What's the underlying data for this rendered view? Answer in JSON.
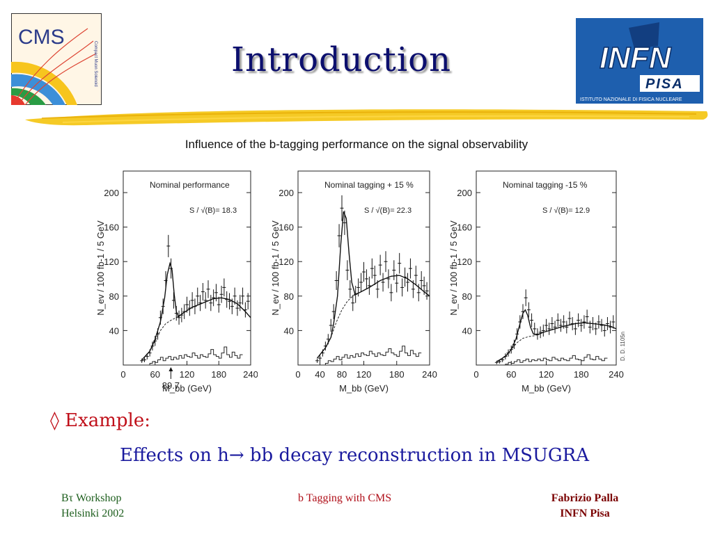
{
  "slide": {
    "title": "Introduction",
    "figure_title": "Influence of the b-tagging performance on the signal observability",
    "example_label": "◊ Example:",
    "example_text": "Effects on h→ bb decay reconstruction in MSUGRA"
  },
  "logos": {
    "cms": {
      "text": "CMS",
      "subtext": "Compact Muon Solenoid"
    },
    "infn": {
      "text": "INFN",
      "subtext": "PISA",
      "caption": "ISTITUTO NAZIONALE DI FISICA NUCLEARE"
    }
  },
  "footer": {
    "left_line1": "Bτ Workshop",
    "left_line2": "Helsinki 2002",
    "center": "b Tagging with CMS",
    "right_line1": "Fabrizio Palla",
    "right_line2": "INFN Pisa"
  },
  "colors": {
    "title": "#0c0f6e",
    "example": "#c0101a",
    "body_text": "#1a1a9e",
    "swoosh": "#f2c200"
  },
  "chart_data": [
    {
      "type": "scatter",
      "title": "Nominal performance",
      "annotation": "S / √(B)= 18.3",
      "peak_label": "89.7",
      "ylabel": "N_ev / 100 fb-1 / 5 GeV",
      "xlabel": "M_bb (GeV)",
      "xlim": [
        0,
        240
      ],
      "ylim": [
        0,
        225
      ],
      "xticks": [
        0,
        60,
        120,
        180,
        240
      ],
      "yticks": [
        40,
        80,
        120,
        160,
        200
      ],
      "x": [
        35,
        40,
        45,
        50,
        55,
        60,
        65,
        70,
        75,
        80,
        85,
        90,
        95,
        100,
        105,
        110,
        115,
        120,
        125,
        130,
        135,
        140,
        145,
        150,
        155,
        160,
        165,
        170,
        175,
        180,
        185,
        190,
        195,
        200,
        205,
        210,
        215,
        220,
        225,
        230,
        235
      ],
      "y": [
        5,
        6,
        10,
        14,
        22,
        28,
        36,
        55,
        68,
        98,
        138,
        112,
        75,
        60,
        55,
        58,
        62,
        70,
        66,
        75,
        68,
        80,
        72,
        85,
        75,
        88,
        72,
        78,
        84,
        70,
        82,
        90,
        76,
        74,
        68,
        80,
        66,
        72,
        80,
        64,
        74
      ],
      "signal_fit": [
        [
          35,
          6
        ],
        [
          50,
          16
        ],
        [
          60,
          30
        ],
        [
          70,
          50
        ],
        [
          78,
          78
        ],
        [
          83,
          105
        ],
        [
          88,
          118
        ],
        [
          92,
          110
        ],
        [
          96,
          82
        ],
        [
          100,
          62
        ],
        [
          104,
          56
        ],
        [
          112,
          60
        ],
        [
          130,
          67
        ],
        [
          150,
          72
        ],
        [
          170,
          77
        ],
        [
          185,
          78
        ],
        [
          200,
          76
        ],
        [
          215,
          71
        ],
        [
          230,
          62
        ],
        [
          240,
          55
        ]
      ],
      "background_fit": [
        [
          35,
          6
        ],
        [
          50,
          16
        ],
        [
          60,
          28
        ],
        [
          70,
          40
        ],
        [
          80,
          48
        ],
        [
          90,
          52
        ],
        [
          100,
          55
        ],
        [
          112,
          60
        ],
        [
          130,
          67
        ],
        [
          150,
          72
        ],
        [
          170,
          77
        ],
        [
          185,
          78
        ],
        [
          200,
          76
        ],
        [
          215,
          71
        ],
        [
          230,
          62
        ],
        [
          240,
          55
        ]
      ],
      "histogram": [
        2,
        4,
        3,
        6,
        9,
        5,
        8,
        10,
        6,
        9,
        7,
        11,
        8,
        12,
        10,
        9,
        14,
        11,
        8,
        12,
        10,
        9,
        13,
        18,
        12,
        10,
        8,
        14,
        21,
        12,
        9,
        15,
        11,
        8,
        12
      ]
    },
    {
      "type": "scatter",
      "title": "Nominal tagging + 15 %",
      "annotation": "S / √(B)= 22.3",
      "ylabel": "N_ev / 100 fb-1 / 5 GeV",
      "xlabel": "M_bb (GeV)",
      "xlim": [
        0,
        240
      ],
      "ylim": [
        0,
        225
      ],
      "xticks": [
        0,
        40,
        80,
        120,
        180,
        240
      ],
      "yticks": [
        40,
        80,
        120,
        160,
        200
      ],
      "x": [
        35,
        40,
        45,
        50,
        55,
        60,
        65,
        70,
        75,
        80,
        85,
        90,
        95,
        100,
        105,
        110,
        115,
        120,
        125,
        130,
        135,
        140,
        145,
        150,
        155,
        160,
        165,
        170,
        175,
        180,
        185,
        190,
        195,
        200,
        205,
        210,
        215,
        220,
        225,
        230,
        235
      ],
      "y": [
        5,
        8,
        14,
        22,
        30,
        46,
        62,
        98,
        150,
        182,
        165,
        110,
        88,
        72,
        82,
        90,
        96,
        108,
        100,
        92,
        112,
        104,
        88,
        116,
        96,
        120,
        100,
        84,
        110,
        95,
        118,
        90,
        102,
        96,
        112,
        88,
        104,
        84,
        98,
        92,
        86
      ],
      "signal_fit": [
        [
          35,
          8
        ],
        [
          50,
          20
        ],
        [
          60,
          32
        ],
        [
          65,
          48
        ],
        [
          72,
          80
        ],
        [
          78,
          140
        ],
        [
          83,
          178
        ],
        [
          88,
          170
        ],
        [
          93,
          130
        ],
        [
          98,
          96
        ],
        [
          104,
          82
        ],
        [
          112,
          84
        ],
        [
          130,
          90
        ],
        [
          150,
          98
        ],
        [
          170,
          103
        ],
        [
          185,
          104
        ],
        [
          200,
          100
        ],
        [
          215,
          93
        ],
        [
          230,
          85
        ],
        [
          240,
          80
        ]
      ],
      "background_fit": [
        [
          35,
          8
        ],
        [
          50,
          20
        ],
        [
          60,
          32
        ],
        [
          70,
          50
        ],
        [
          80,
          64
        ],
        [
          90,
          74
        ],
        [
          100,
          80
        ],
        [
          112,
          84
        ],
        [
          130,
          90
        ],
        [
          150,
          98
        ],
        [
          170,
          103
        ],
        [
          185,
          104
        ],
        [
          200,
          100
        ],
        [
          215,
          93
        ],
        [
          230,
          85
        ],
        [
          240,
          80
        ]
      ],
      "histogram": [
        2,
        5,
        4,
        7,
        10,
        6,
        9,
        12,
        8,
        11,
        9,
        13,
        10,
        14,
        12,
        11,
        16,
        13,
        10,
        14,
        12,
        11,
        15,
        19,
        14,
        12,
        10,
        16,
        22,
        14,
        11,
        17,
        13,
        10,
        14
      ]
    },
    {
      "type": "scatter",
      "title": "Nominal tagging -15 %",
      "annotation": "S / √(B)= 12.9",
      "side_note": "D. D. 1105n",
      "ylabel": "N_ev / 100 fb-1 / 5 GeV",
      "xlabel": "M_bb (GeV)",
      "xlim": [
        0,
        240
      ],
      "ylim": [
        0,
        225
      ],
      "xticks": [
        0,
        60,
        120,
        180,
        240
      ],
      "yticks": [
        40,
        80,
        120,
        160,
        200
      ],
      "x": [
        35,
        40,
        45,
        50,
        55,
        60,
        65,
        70,
        75,
        80,
        85,
        90,
        95,
        100,
        105,
        110,
        115,
        120,
        125,
        130,
        135,
        140,
        145,
        150,
        155,
        160,
        165,
        170,
        175,
        180,
        185,
        190,
        195,
        200,
        205,
        210,
        215,
        220,
        225,
        230,
        235
      ],
      "y": [
        3,
        4,
        6,
        10,
        14,
        18,
        24,
        36,
        50,
        62,
        78,
        64,
        52,
        42,
        36,
        38,
        40,
        46,
        42,
        48,
        44,
        52,
        46,
        50,
        44,
        54,
        48,
        42,
        52,
        46,
        50,
        56,
        44,
        48,
        42,
        50,
        46,
        40,
        48,
        44,
        50
      ],
      "signal_fit": [
        [
          35,
          4
        ],
        [
          50,
          10
        ],
        [
          60,
          18
        ],
        [
          68,
          30
        ],
        [
          75,
          48
        ],
        [
          80,
          60
        ],
        [
          84,
          64
        ],
        [
          88,
          58
        ],
        [
          93,
          44
        ],
        [
          98,
          36
        ],
        [
          105,
          35
        ],
        [
          115,
          38
        ],
        [
          130,
          41
        ],
        [
          150,
          45
        ],
        [
          170,
          48
        ],
        [
          185,
          49
        ],
        [
          200,
          48
        ],
        [
          215,
          47
        ],
        [
          230,
          45
        ],
        [
          240,
          42
        ]
      ],
      "background_fit": [
        [
          35,
          4
        ],
        [
          50,
          10
        ],
        [
          60,
          18
        ],
        [
          70,
          26
        ],
        [
          80,
          31
        ],
        [
          90,
          33
        ],
        [
          100,
          34
        ],
        [
          115,
          38
        ],
        [
          130,
          41
        ],
        [
          150,
          45
        ],
        [
          170,
          48
        ],
        [
          185,
          49
        ],
        [
          200,
          48
        ],
        [
          215,
          47
        ],
        [
          230,
          45
        ],
        [
          240,
          42
        ]
      ],
      "histogram": [
        1,
        3,
        2,
        4,
        6,
        3,
        5,
        7,
        4,
        6,
        5,
        7,
        5,
        8,
        6,
        5,
        9,
        7,
        5,
        8,
        6,
        5,
        8,
        11,
        7,
        6,
        5,
        9,
        12,
        7,
        6,
        10,
        7,
        5,
        8
      ]
    }
  ]
}
